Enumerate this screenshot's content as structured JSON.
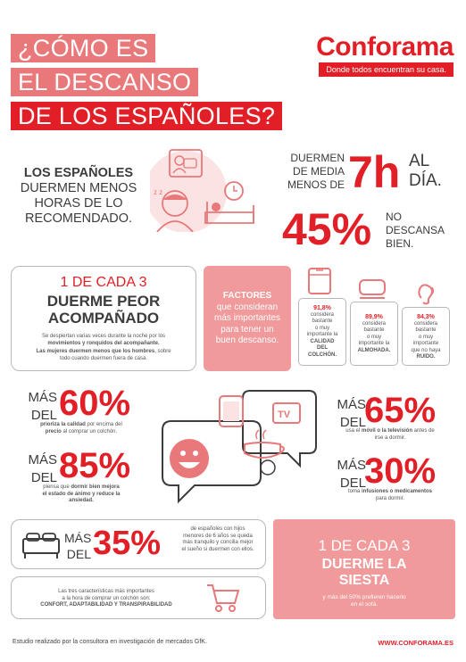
{
  "header": {
    "title_lines": [
      "¿CÓMO ES",
      "EL DESCANSO",
      "DE LOS ESPAÑOLES?"
    ],
    "brand": "Conforama",
    "tagline": "Donde todos encuentran su casa."
  },
  "intro": {
    "lines": [
      "LOS ESPAÑOLES",
      "DUERMEN MENOS",
      "HORAS DE LO",
      "RECOMENDADO."
    ]
  },
  "sleep_hours": {
    "prefix_lines": [
      "DUERMEN",
      "DE MEDIA",
      "MENOS DE"
    ],
    "value": "7h",
    "suffix_lines": [
      "AL",
      "DÍA."
    ]
  },
  "no_rest": {
    "value": "45%",
    "label_lines": [
      "NO",
      "DESCANSA",
      "BIEN."
    ]
  },
  "accompanied": {
    "heading": "1 DE CADA 3",
    "sub_lines": [
      "DUERME PEOR",
      "ACOMPAÑADO"
    ],
    "text1a": "Se despiertan varias veces durante la noche por los",
    "text1b": "movimientos y ronquidos del acompañante.",
    "text2a": "Las mujeres duermen menos que los hombres",
    "text2b": ", sobre",
    "text2c": "todo cuando duermen fuera de casa."
  },
  "factors": {
    "title_bold": "FACTORES",
    "title_lines": [
      "que consideran",
      "más importantes",
      "para tener un",
      "buen descanso."
    ],
    "items": [
      {
        "pct": "91,8%",
        "l1": "considera",
        "l2": "bastante",
        "l3": "o muy",
        "l4": "importante la",
        "b1": "CALIDAD",
        "b2": "DEL",
        "b3": "COLCHÓN."
      },
      {
        "pct": "89,9%",
        "l1": "considera",
        "l2": "bastante",
        "l3": "o muy",
        "l4": "importante la",
        "b1": "ALMOHADA.",
        "b2": "",
        "b3": ""
      },
      {
        "pct": "84,3%",
        "l1": "considera",
        "l2": "bastante",
        "l3": "o muy",
        "l4": "importante",
        "l5": "que no haya",
        "b1": "RUIDO.",
        "b2": "",
        "b3": ""
      }
    ]
  },
  "stats": {
    "s60": {
      "pre1": "MÁS",
      "pre2": "DEL",
      "value": "60%",
      "l1a": "prioriza la calidad",
      "l1b": " por encima del",
      "l2a": "precio",
      "l2b": " al comprar un colchón."
    },
    "s85": {
      "pre1": "MÁS",
      "pre2": "DEL",
      "value": "85%",
      "l1a": "piensa que ",
      "l1b": "dormir bien mejora",
      "l2": "el estado de ánimo y reduce la",
      "l3": "ansiedad."
    },
    "s65": {
      "pre1": "MÁS",
      "pre2": "DEL",
      "value": "65%",
      "l1a": "usa el ",
      "l1b": "móvil o la televisión",
      "l1c": " antes de",
      "l2": "irse a dormir."
    },
    "s30": {
      "pre1": "MÁS",
      "pre2": "DEL",
      "value": "30%",
      "l1a": "toma ",
      "l1b": "infusiones o medicamentos",
      "l2": "para dormir."
    }
  },
  "children": {
    "pre1": "MÁS",
    "pre2": "DEL",
    "value": "35%",
    "l1": "de españoles con hijos",
    "l2": "menores de 6 años se queda",
    "l3": "más tranquilo y concilia mejor",
    "l4": "el sueño si duermen con ellos."
  },
  "siesta": {
    "heading": "1 DE CADA 3",
    "sub_lines": [
      "DUERME LA",
      "SIESTA"
    ],
    "text_lines": [
      "y más del 50% prefieren hacerlo",
      "en el sofá."
    ]
  },
  "mattress": {
    "l1": "Las tres características más importantes",
    "l2": "a la hora de comprar un colchón son:",
    "l3": "CONFORT, ADAPTABILIDAD Y TRANSPIRABILIDAD"
  },
  "footer": {
    "note": "Estudio realizado por la consultora en investigación de mercados GfK.",
    "url": "WWW.CONFORAMA.ES"
  },
  "colors": {
    "red": "#e21f26",
    "salmon": "#e8787a",
    "pink": "#f09a9b",
    "grey_text": "#3c3c3c"
  }
}
